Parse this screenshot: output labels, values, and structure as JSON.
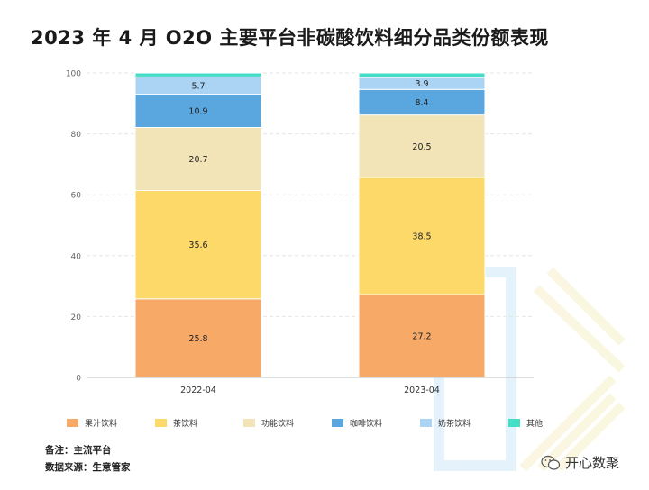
{
  "title": "2023 年 4 月 O2O 主要平台非碳酸饮料细分品类份额表现",
  "chart_data": {
    "type": "bar",
    "stacked": true,
    "categories": [
      "2022-04",
      "2023-04"
    ],
    "ylim": [
      0,
      100
    ],
    "y_ticks": [
      0,
      20,
      40,
      60,
      80,
      100
    ],
    "grid": "horizontal dashed",
    "legend_position": "bottom",
    "series": [
      {
        "name": "果汁饮料",
        "color": "#F7A968",
        "values": [
          25.8,
          27.2
        ]
      },
      {
        "name": "茶饮料",
        "color": "#FDD96A",
        "values": [
          35.6,
          38.5
        ]
      },
      {
        "name": "功能饮料",
        "color": "#F2E4B6",
        "values": [
          20.7,
          20.5
        ]
      },
      {
        "name": "咖啡饮料",
        "color": "#5AA7E0",
        "values": [
          10.9,
          8.4
        ]
      },
      {
        "name": "奶茶饮料",
        "color": "#ABD3F3",
        "values": [
          5.7,
          3.9
        ]
      },
      {
        "name": "其他",
        "color": "#44DDC6",
        "values": [
          1.3,
          1.5
        ]
      }
    ],
    "data_labels_for_series": [
      "果汁饮料",
      "茶饮料",
      "功能饮料",
      "咖啡饮料",
      "奶茶饮料"
    ]
  },
  "notes": {
    "remark": "备注：主流平台",
    "source": "数据来源：生意管家"
  },
  "brand": {
    "text": "开心数聚",
    "icon": "wechat-icon"
  }
}
